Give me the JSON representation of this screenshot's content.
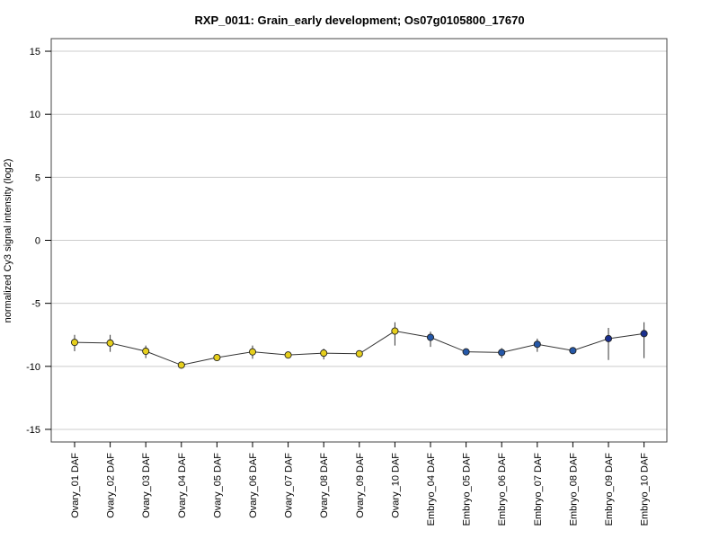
{
  "chart_data": {
    "type": "line",
    "title": "RXP_0011: Grain_early development; Os07g0105800_17670",
    "xlabel": "",
    "ylabel": "normalized Cy3 signal intensity (log2)",
    "ylim": [
      -16,
      16
    ],
    "yticks": [
      -15,
      -10,
      -5,
      0,
      5,
      10,
      15
    ],
    "grid": "horizontal",
    "categories": [
      "Ovary_01 DAF",
      "Ovary_02 DAF",
      "Ovary_03 DAF",
      "Ovary_04 DAF",
      "Ovary_05 DAF",
      "Ovary_06 DAF",
      "Ovary_07 DAF",
      "Ovary_08 DAF",
      "Ovary_09 DAF",
      "Ovary_10 DAF",
      "Embryo_04 DAF",
      "Embryo_05 DAF",
      "Embryo_06 DAF",
      "Embryo_07 DAF",
      "Embryo_08 DAF",
      "Embryo_09 DAF",
      "Embryo_10 DAF"
    ],
    "series": [
      {
        "values": [
          -8.1,
          -8.15,
          -8.8,
          -9.9,
          -9.3,
          -8.85,
          -9.1,
          -8.95,
          -9.0,
          -7.2,
          -7.7,
          -8.85,
          -8.9,
          -8.25,
          -8.75,
          -7.8,
          -7.4
        ],
        "err_low": [
          -8.8,
          -8.85,
          -9.35,
          -10.05,
          -9.55,
          -9.4,
          -9.3,
          -9.45,
          -9.15,
          -8.35,
          -8.45,
          -8.95,
          -9.35,
          -8.85,
          -8.95,
          -9.5,
          -9.35
        ],
        "err_high": [
          -7.5,
          -7.5,
          -8.35,
          -9.7,
          -9.05,
          -8.35,
          -8.9,
          -8.6,
          -8.85,
          -6.5,
          -7.25,
          -8.7,
          -8.55,
          -7.8,
          -8.55,
          -6.95,
          -6.5
        ],
        "colors": [
          "#e6cf1c",
          "#e6cf1c",
          "#e6cf1c",
          "#e6cf1c",
          "#e6cf1c",
          "#e6cf1c",
          "#e6cf1c",
          "#e6cf1c",
          "#e6cf1c",
          "#e6cf1c",
          "#2558a8",
          "#2558a8",
          "#2558a8",
          "#2558a8",
          "#2558a8",
          "#1a2f8f",
          "#1a2f8f"
        ]
      }
    ],
    "line_color": "#333333",
    "grid_color": "#cccccc",
    "frame_color": "#444444"
  }
}
